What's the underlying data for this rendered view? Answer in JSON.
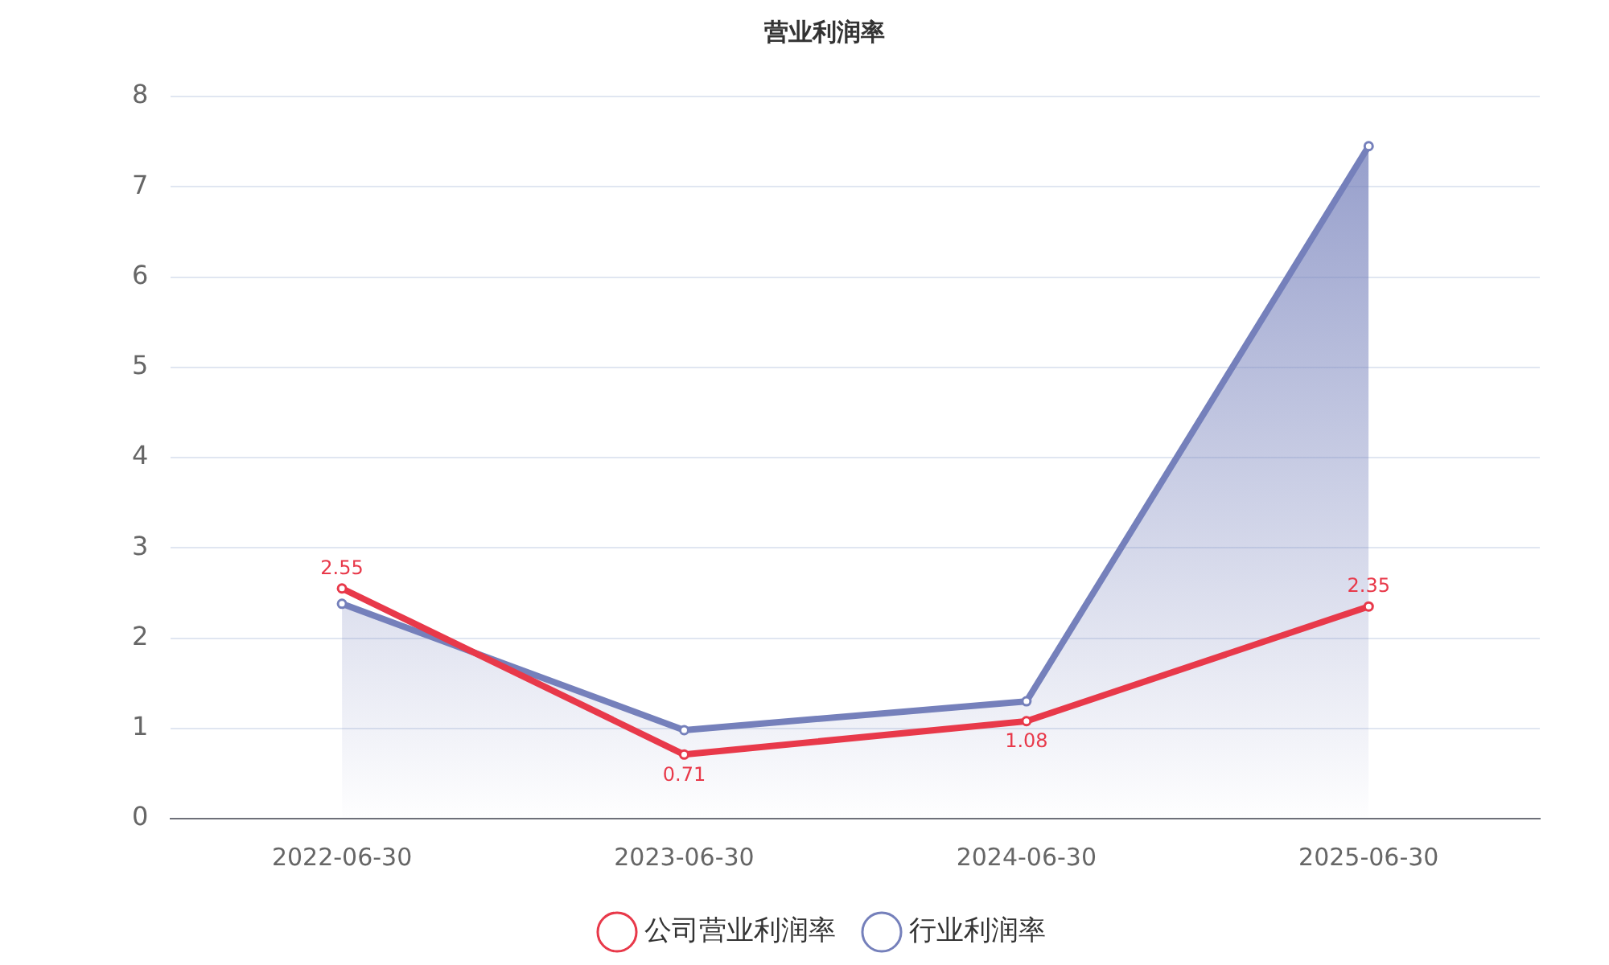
{
  "chart_data": {
    "type": "line",
    "title": "营业利润率",
    "categories": [
      "2022-06-30",
      "2023-06-30",
      "2024-06-30",
      "2025-06-30"
    ],
    "series": [
      {
        "name": "公司营业利润率",
        "color": "#e8394a",
        "values": [
          2.55,
          0.71,
          1.08,
          2.35
        ],
        "value_labels": [
          "2.55",
          "0.71",
          "1.08",
          "2.35"
        ]
      },
      {
        "name": "行业利润率",
        "type": "area",
        "color": "#7580bb",
        "values": [
          2.38,
          0.98,
          1.3,
          7.45
        ]
      }
    ],
    "ylim": [
      0,
      8
    ],
    "yticks": [
      0,
      1,
      2,
      3,
      4,
      5,
      6,
      7,
      8
    ],
    "grid": "y",
    "legend": "bottom",
    "marker": "circle"
  }
}
